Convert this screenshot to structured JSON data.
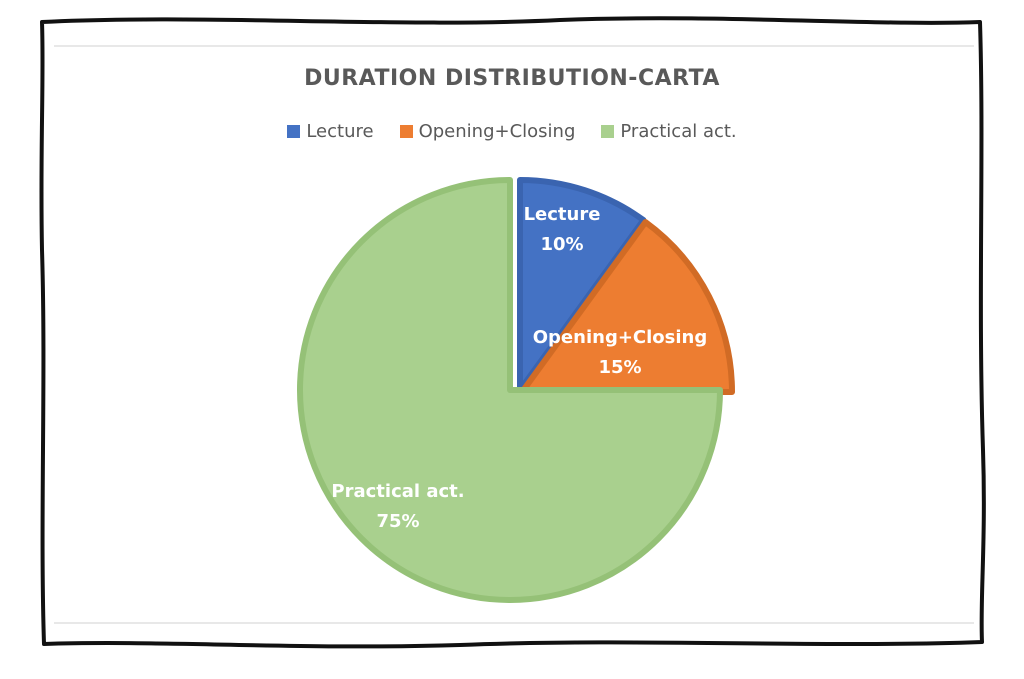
{
  "chart_data": {
    "type": "pie",
    "title": "DURATION DISTRIBUTION-CARTA",
    "legend_position": "top",
    "slices": [
      {
        "name": "Lecture",
        "value": 10,
        "label": "10%",
        "color": "#4472C4",
        "edge": "#3a64b0"
      },
      {
        "name": "Opening+Closing",
        "value": 15,
        "label": "15%",
        "color": "#ED7D31",
        "edge": "#d16b25"
      },
      {
        "name": "Practical act.",
        "value": 75,
        "label": "75%",
        "color": "#A9D08E",
        "edge": "#95c177"
      }
    ]
  }
}
